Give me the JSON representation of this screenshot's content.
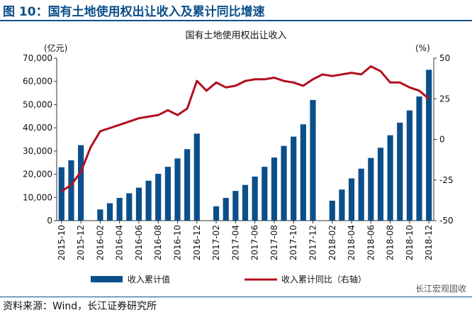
{
  "figure_title": "图 10：国有土地使用权出让收入及累计同比增速",
  "source": "资料来源：Wind，长江证券研究所",
  "watermark": "长江宏观固收",
  "colors": {
    "bar": "#0b4f8a",
    "line": "#b30e1e",
    "title": "#0b4f8a"
  },
  "chart_data": {
    "type": "bar",
    "title": "国有土地使用权出让收入",
    "left_unit": "(亿元)",
    "right_unit": "(%)",
    "ylim": [
      0,
      70000
    ],
    "y2lim": [
      -50,
      50
    ],
    "yticks": [
      "0",
      "10,000",
      "20,000",
      "30,000",
      "40,000",
      "50,000",
      "60,000",
      "70,000"
    ],
    "y2ticks": [
      "-50",
      "-25",
      "0",
      "25",
      "50"
    ],
    "categories": [
      "2015-10",
      "2015-11",
      "2015-12",
      "2016-01",
      "2016-02",
      "2016-03",
      "2016-04",
      "2016-05",
      "2016-06",
      "2016-07",
      "2016-08",
      "2016-09",
      "2016-10",
      "2016-11",
      "2016-12",
      "2017-01",
      "2017-02",
      "2017-03",
      "2017-04",
      "2017-05",
      "2017-06",
      "2017-07",
      "2017-08",
      "2017-09",
      "2017-10",
      "2017-11",
      "2017-12",
      "2018-01",
      "2018-02",
      "2018-03",
      "2018-04",
      "2018-05",
      "2018-06",
      "2018-07",
      "2018-08",
      "2018-09",
      "2018-10",
      "2018-11",
      "2018-12"
    ],
    "xtick_labels": [
      "2015-10",
      "2015-12",
      "2016-02",
      "2016-04",
      "2016-06",
      "2016-08",
      "2016-10",
      "2016-12",
      "2017-02",
      "2017-04",
      "2017-06",
      "2017-08",
      "2017-10",
      "2017-12",
      "2018-02",
      "2018-04",
      "2018-06",
      "2018-08",
      "2018-10",
      "2018-12"
    ],
    "series": [
      {
        "name": "收入累计值",
        "type": "bar",
        "axis": "left",
        "values": [
          23000,
          26000,
          32500,
          null,
          4800,
          7500,
          9800,
          11800,
          14200,
          17200,
          20200,
          23200,
          26800,
          30800,
          37500,
          null,
          6200,
          9800,
          12800,
          15400,
          19000,
          23200,
          27200,
          32200,
          36200,
          41500,
          52000,
          null,
          8600,
          13400,
          18200,
          22400,
          27000,
          31400,
          36800,
          42200,
          47500,
          53500,
          65000
        ]
      },
      {
        "name": "收入累计同比（右轴）",
        "type": "line",
        "axis": "right",
        "values": [
          -32,
          -28,
          -20,
          -5,
          5,
          7,
          9,
          11,
          13,
          14,
          15,
          18,
          15,
          19,
          36,
          30,
          35,
          32,
          33,
          36,
          37,
          37,
          38,
          36,
          35,
          33,
          37,
          40,
          39,
          40,
          41,
          40,
          45,
          42,
          35,
          35,
          32,
          30,
          25
        ]
      }
    ],
    "legend_placement": "bottom",
    "grid": false
  }
}
